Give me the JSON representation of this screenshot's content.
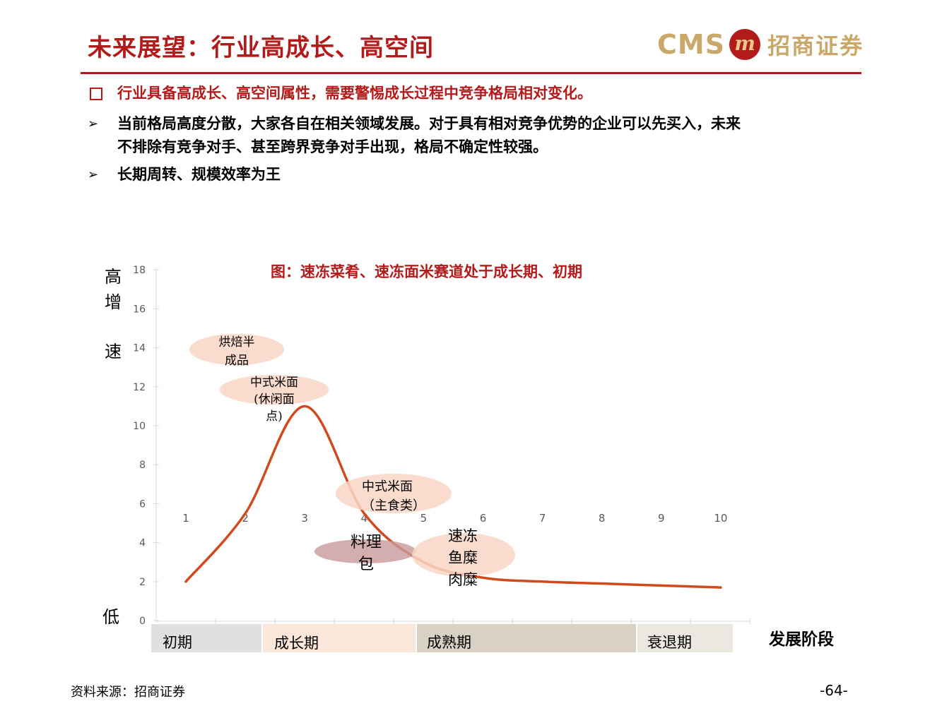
{
  "header": {
    "title": "未来展望：行业高成长、高空间",
    "logo_text": "CMS",
    "logo_cn": "招商证券"
  },
  "bullets": {
    "main": "行业具备高成长、高空间属性，需要警惕成长过程中竞争格局相对变化。",
    "sub1_line1": "当前格局高度分散，大家各自在相关领域发展。对于具有相对竞争优势的企业可以先买入，未来",
    "sub1_line2": "不排除有竞争对手、甚至跨界竞争对手出现，格局不确定性较强。",
    "sub2": "长期周转、规模效率为王",
    "arrow_glyph": "➢"
  },
  "chart": {
    "title": "图：速冻菜肴、速冻面米赛道处于成长期、初期",
    "y_side_labels": {
      "high1": "高",
      "high2": "增",
      "high3": "速",
      "low": "低"
    },
    "x_axis_label": "发展阶段",
    "stages": [
      {
        "label": "初期",
        "color": "#e0e0e0"
      },
      {
        "label": "成长期",
        "color": "#fbe7d9"
      },
      {
        "label": "成熟期",
        "color": "#d8d2c5"
      },
      {
        "label": "衰退期",
        "color": "#ebe7e1"
      }
    ],
    "bubbles": [
      {
        "line1": "烘焙半",
        "line2": "成品",
        "line3": ""
      },
      {
        "line1": "中式米面",
        "line2": "(休闲面",
        "line3": "点)"
      },
      {
        "line1": "中式米面",
        "line2": "（主食类）",
        "line3": ""
      },
      {
        "line1": "料理",
        "line2": "包",
        "line3": ""
      },
      {
        "line1": "速冻",
        "line2": "鱼糜",
        "line3": "肉糜"
      }
    ]
  },
  "chart_data": {
    "type": "line",
    "y_ticks": [
      "0",
      "2",
      "4",
      "6",
      "8",
      "10",
      "12",
      "14",
      "16",
      "18"
    ],
    "x_ticks": [
      "1",
      "2",
      "3",
      "4",
      "5",
      "6",
      "7",
      "8",
      "9",
      "10"
    ],
    "line_color": "#d04a1e",
    "series": [
      {
        "x": [
          1,
          2,
          3,
          4,
          5,
          6,
          7,
          8,
          9,
          10
        ],
        "values": [
          2.0,
          5.5,
          11.0,
          5.5,
          3.0,
          2.2,
          2.0,
          1.9,
          1.8,
          1.7
        ]
      }
    ]
  },
  "footer": {
    "source": "资料来源：招商证券",
    "page": "-64-"
  }
}
